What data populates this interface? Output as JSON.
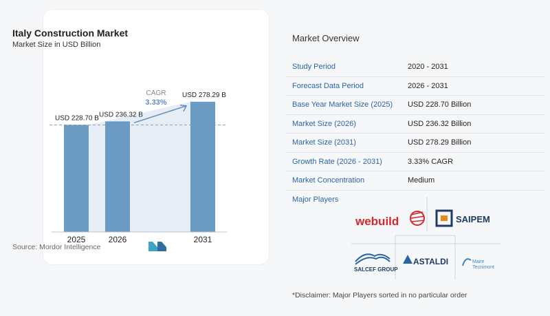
{
  "chart_data": {
    "type": "bar",
    "title": "Italy Construction Market",
    "subtitle": "Market Size in USD Billion",
    "categories": [
      "2025",
      "2026",
      "2031"
    ],
    "values": [
      228.7,
      236.32,
      278.29
    ],
    "value_labels": [
      "USD 228.70 B",
      "USD 236.32 B",
      "USD 278.29 B"
    ],
    "cagr_label": "CAGR",
    "cagr_value": "3.33%",
    "colors": {
      "bar": "#6b9bc3",
      "shade": "#e6edf4",
      "accent": "#5e8fbd"
    },
    "source": "Source:  Mordor Intelligence"
  },
  "overview": {
    "title": "Market Overview",
    "rows": [
      {
        "key": "Study Period",
        "value": "2020 - 2031"
      },
      {
        "key": "Forecast Data Period",
        "value": "2026 - 2031"
      },
      {
        "key": "Base Year Market Size (2025)",
        "value": "USD 228.70 Billion"
      },
      {
        "key": "Market Size (2026)",
        "value": "USD 236.32 Billion"
      },
      {
        "key": "Market Size (2031)",
        "value": "USD 278.29 Billion"
      },
      {
        "key": "Growth Rate (2026 - 2031)",
        "value": "3.33% CAGR"
      },
      {
        "key": "Market Concentration",
        "value": "Medium"
      }
    ],
    "major_players_label": "Major Players",
    "players": [
      "webuild",
      "SAIPEM",
      "SALCEF GROUP",
      "ASTALDI",
      "Maire",
      "Tecnimont"
    ],
    "disclaimer": "*Disclaimer: Major Players sorted in no particular order"
  }
}
